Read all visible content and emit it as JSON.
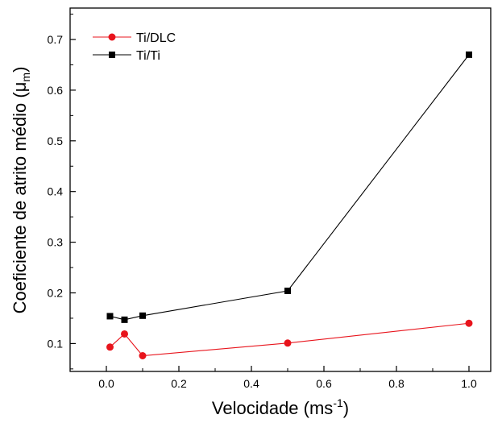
{
  "chart_data": {
    "type": "line",
    "xlabel_main": "Velocidade (ms",
    "xlabel_sup": "-1",
    "xlabel_close": ")",
    "ylabel_main": "Coeficiente de atrito médio (μ",
    "ylabel_sub": "m",
    "ylabel_close": ")",
    "xlim": [
      -0.1,
      1.06
    ],
    "ylim": [
      0.045,
      0.762
    ],
    "xticks": [
      0.0,
      0.2,
      0.4,
      0.6,
      0.8,
      1.0
    ],
    "xtick_labels": [
      "0.0",
      "0.2",
      "0.4",
      "0.6",
      "0.8",
      "1.0"
    ],
    "yticks": [
      0.1,
      0.2,
      0.3,
      0.4,
      0.5,
      0.6,
      0.7
    ],
    "ytick_labels": [
      "0.1",
      "0.2",
      "0.3",
      "0.4",
      "0.5",
      "0.6",
      "0.7"
    ],
    "grid": false,
    "legend_position": "top-left",
    "series": [
      {
        "name": "Ti/DLC",
        "color": "#e8141c",
        "marker": "circle",
        "x": [
          0.01,
          0.05,
          0.1,
          0.5,
          1.0
        ],
        "y": [
          0.093,
          0.119,
          0.076,
          0.101,
          0.14
        ]
      },
      {
        "name": "Ti/Ti",
        "color": "#000000",
        "marker": "square",
        "x": [
          0.01,
          0.05,
          0.1,
          0.5,
          1.0
        ],
        "y": [
          0.154,
          0.147,
          0.155,
          0.204,
          0.67
        ]
      }
    ]
  }
}
